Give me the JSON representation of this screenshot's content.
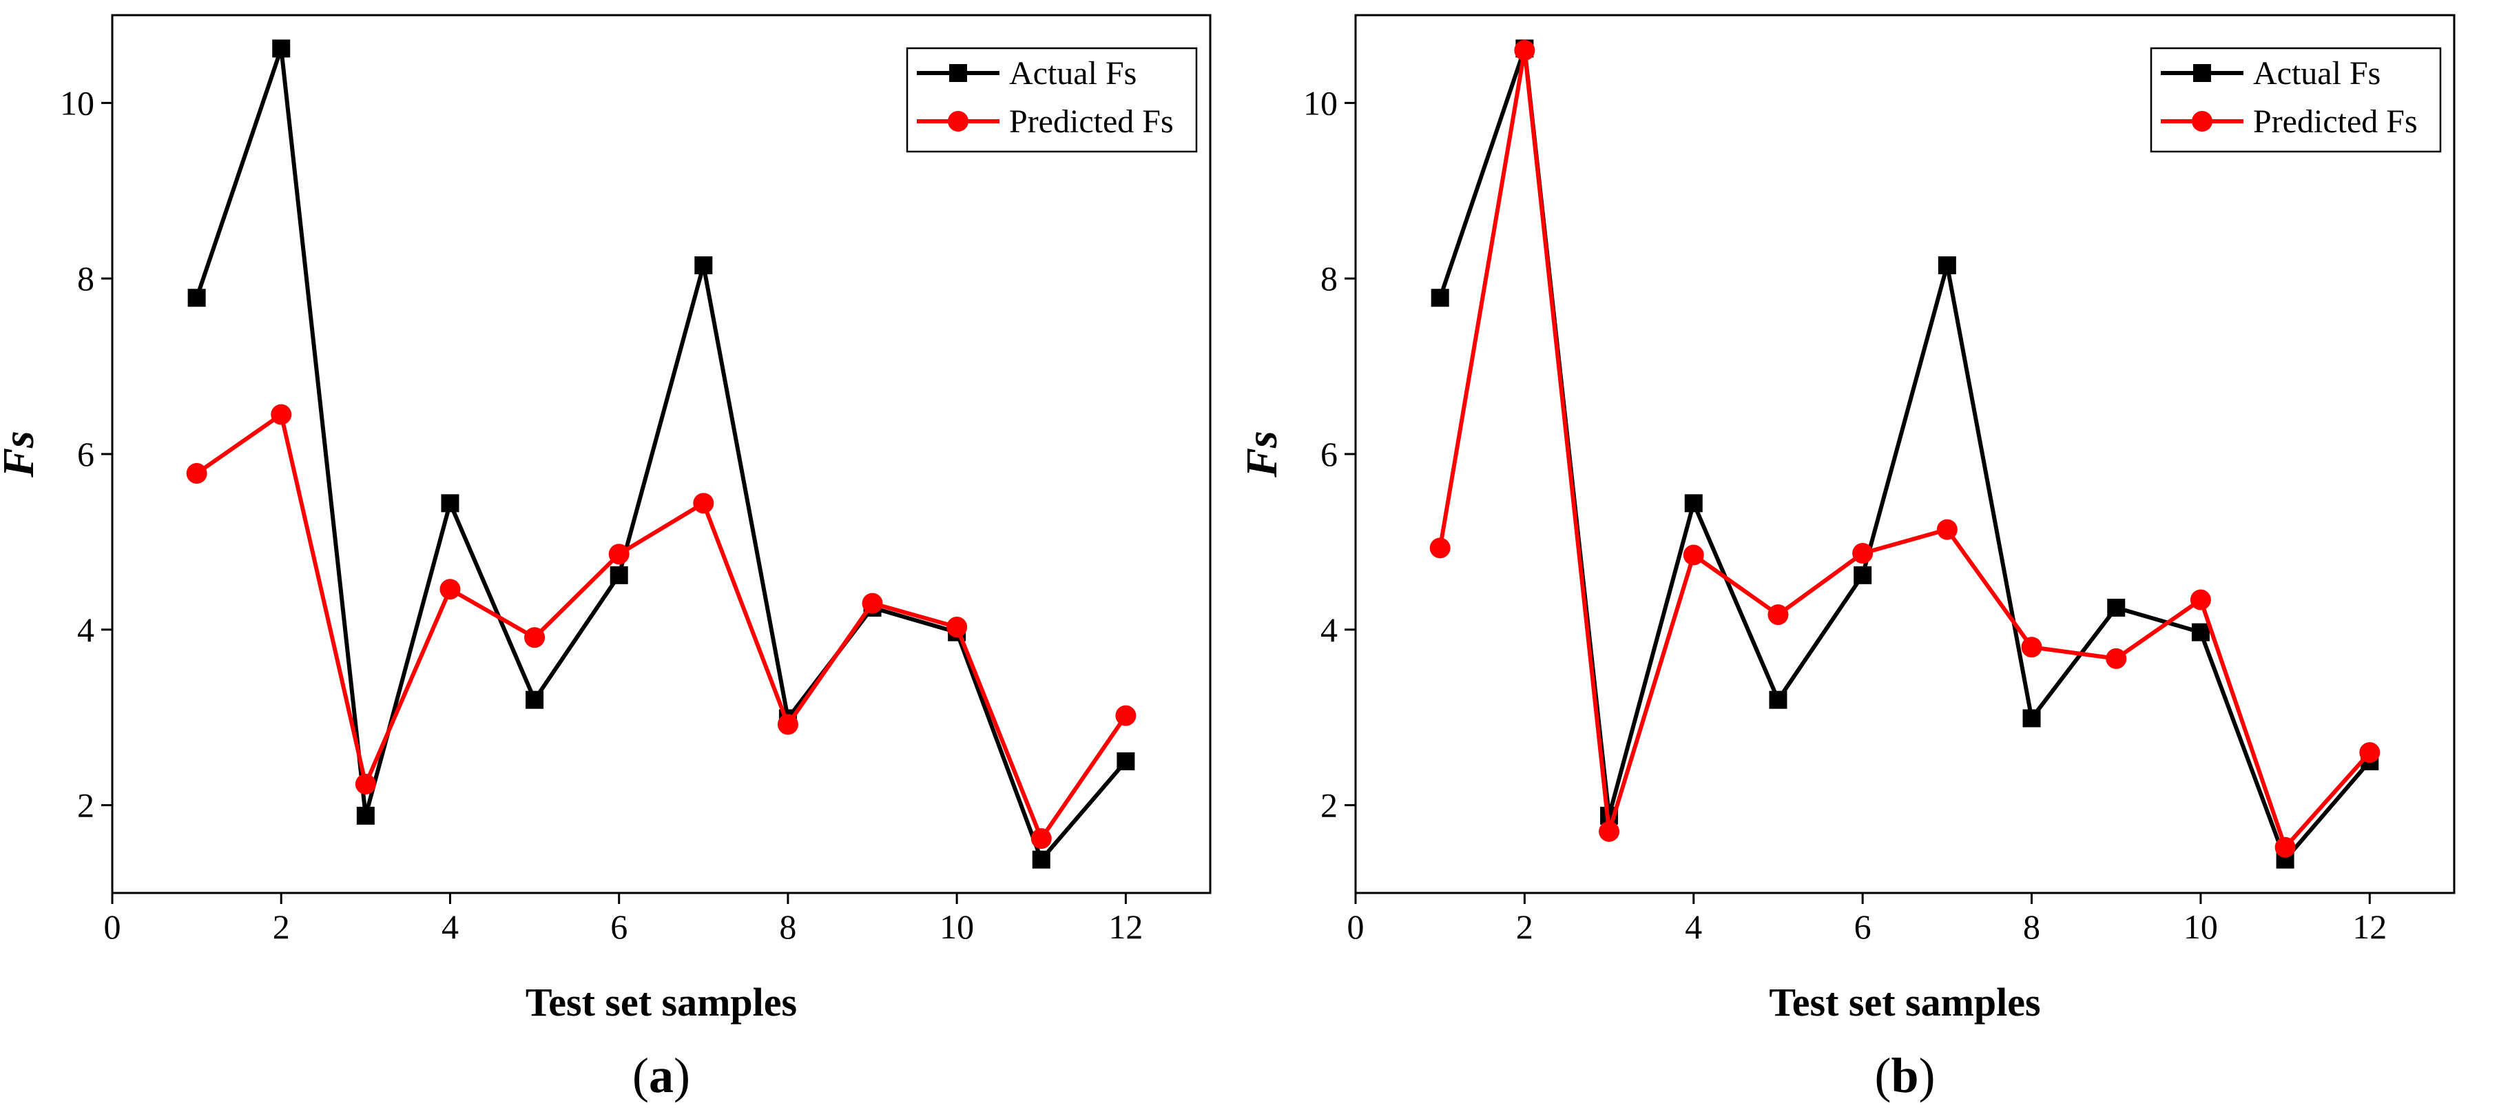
{
  "chart_data": [
    {
      "type": "line",
      "panel_label": "(a)",
      "panel_letter": "a",
      "xlabel": "Test set samples",
      "ylabel": "Fs",
      "xlim": [
        0,
        13
      ],
      "ylim": [
        1,
        11
      ],
      "xticks": [
        0,
        2,
        4,
        6,
        8,
        10,
        12
      ],
      "yticks": [
        2,
        4,
        6,
        8,
        10
      ],
      "legend_position": "top-right",
      "x": [
        1,
        2,
        3,
        4,
        5,
        6,
        7,
        8,
        9,
        10,
        11,
        12
      ],
      "series": [
        {
          "name": "Actual Fs",
          "color": "#000000",
          "marker": "square",
          "values": [
            7.78,
            10.62,
            1.88,
            5.44,
            3.2,
            4.62,
            8.15,
            2.99,
            4.25,
            3.97,
            1.38,
            2.5
          ]
        },
        {
          "name": "Predicted Fs",
          "color": "#ff0000",
          "marker": "circle",
          "values": [
            5.78,
            6.45,
            2.24,
            4.46,
            3.91,
            4.86,
            5.44,
            2.92,
            4.3,
            4.03,
            1.62,
            3.02
          ]
        }
      ]
    },
    {
      "type": "line",
      "panel_label": "(b)",
      "panel_letter": "b",
      "xlabel": "Test set samples",
      "ylabel": "Fs",
      "xlim": [
        0,
        13
      ],
      "ylim": [
        1,
        11
      ],
      "xticks": [
        0,
        2,
        4,
        6,
        8,
        10,
        12
      ],
      "yticks": [
        2,
        4,
        6,
        8,
        10
      ],
      "legend_position": "top-right",
      "x": [
        1,
        2,
        3,
        4,
        5,
        6,
        7,
        8,
        9,
        10,
        11,
        12
      ],
      "series": [
        {
          "name": "Actual Fs",
          "color": "#000000",
          "marker": "square",
          "values": [
            7.78,
            10.62,
            1.88,
            5.44,
            3.2,
            4.62,
            8.15,
            2.99,
            4.25,
            3.97,
            1.38,
            2.5
          ]
        },
        {
          "name": "Predicted Fs",
          "color": "#ff0000",
          "marker": "circle",
          "values": [
            4.93,
            10.6,
            1.7,
            4.85,
            4.17,
            4.87,
            5.14,
            3.8,
            3.67,
            4.34,
            1.52,
            2.6
          ]
        }
      ]
    }
  ]
}
